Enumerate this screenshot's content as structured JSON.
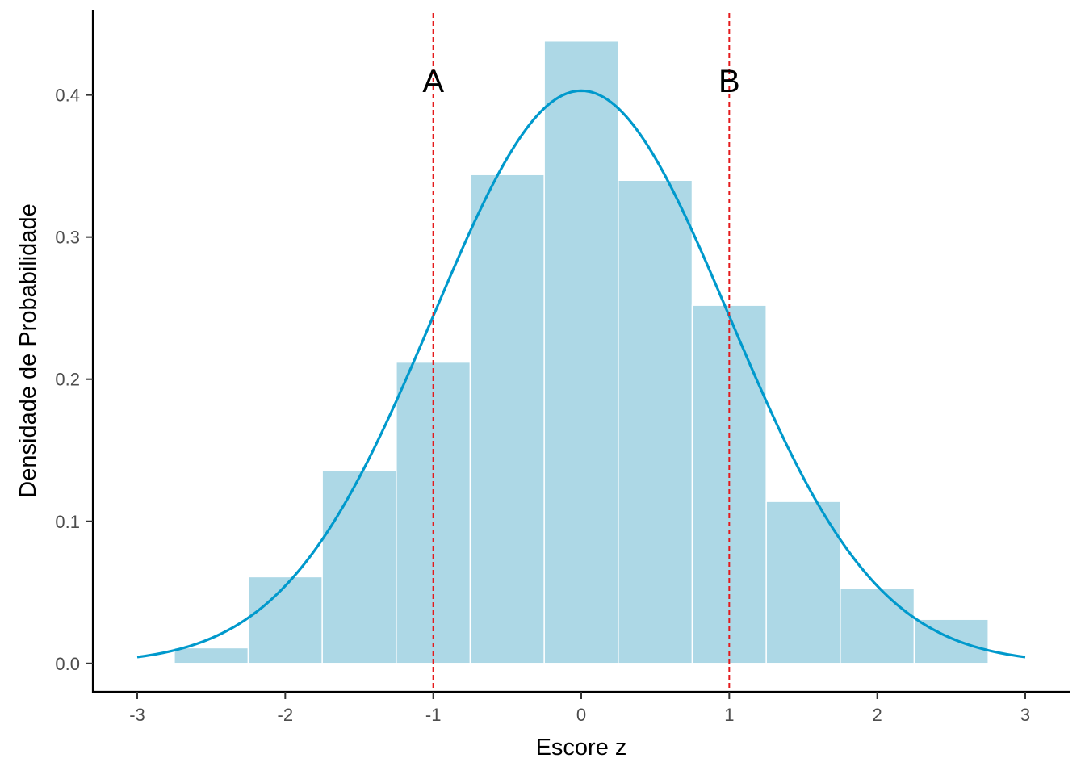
{
  "chart_data": {
    "type": "bar",
    "xlabel": "Escore z",
    "ylabel": "Densidade de Probabilidade",
    "xlim": [
      -3.3,
      3.3
    ],
    "ylim": [
      -0.02,
      0.46
    ],
    "x_ticks": [
      -3,
      -2,
      -1,
      0,
      1,
      2,
      3
    ],
    "x_tick_labels": [
      "-3",
      "-2",
      "-1",
      "0",
      "1",
      "2",
      "3"
    ],
    "y_ticks": [
      0.0,
      0.1,
      0.2,
      0.3,
      0.4
    ],
    "y_tick_labels": [
      "0.0",
      "0.1",
      "0.2",
      "0.3",
      "0.4"
    ],
    "grid": false,
    "histogram": {
      "bin_width": 0.5,
      "bin_centers": [
        -2.5,
        -2.0,
        -1.5,
        -1.0,
        -0.5,
        0.0,
        0.5,
        1.0,
        1.5,
        2.0,
        2.5
      ],
      "density": [
        0.011,
        0.061,
        0.136,
        0.212,
        0.344,
        0.438,
        0.34,
        0.252,
        0.114,
        0.053,
        0.031
      ],
      "fill_color": "#add8e6",
      "border_color": "#ffffff"
    },
    "curve": {
      "type": "line",
      "x_range": [
        -3,
        3
      ],
      "description_values": {
        "peak_x": 0.0,
        "peak_y": 0.403
      },
      "color": "#0099cc"
    },
    "reference_lines": [
      {
        "x": -1,
        "label": "A",
        "label_y": 0.41,
        "color": "#e41a1c",
        "style": "dashed"
      },
      {
        "x": 1,
        "label": "B",
        "label_y": 0.41,
        "color": "#e41a1c",
        "style": "dashed"
      }
    ]
  }
}
